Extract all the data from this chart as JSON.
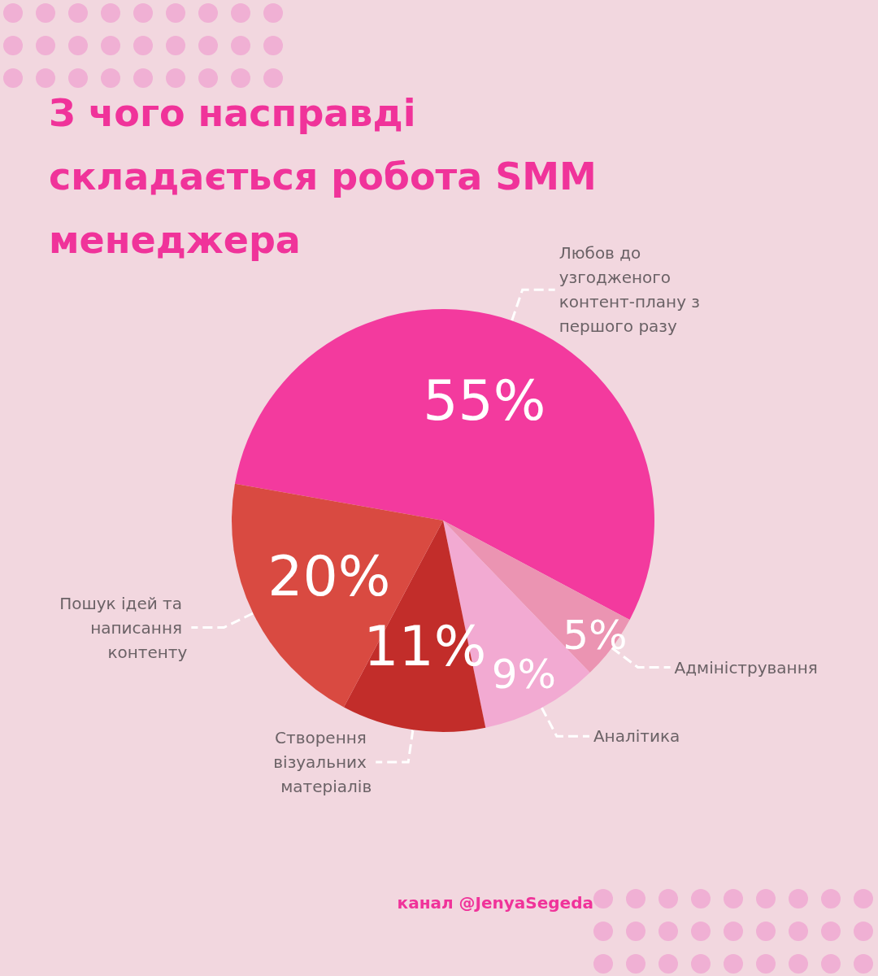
{
  "chart_data": {
    "type": "pie",
    "title": "З чого насправді складається робота SMM менеджера",
    "categories": [
      "Любов до узгодженого контент-плану з першого разу",
      "Адміністрування",
      "Аналітика",
      "Створення візуальних матеріалів",
      "Пошук ідей та написання контенту"
    ],
    "values": [
      55,
      5,
      9,
      11,
      20
    ],
    "value_labels": [
      "55%",
      "5%",
      "9%",
      "11%",
      "20%"
    ],
    "colors": [
      "#f33a9e",
      "#eb94b2",
      "#f2aad2",
      "#c22d2a",
      "#d94a41"
    ],
    "legend": false,
    "annotations": [
      "канал @JenyaSegeda"
    ]
  }
}
